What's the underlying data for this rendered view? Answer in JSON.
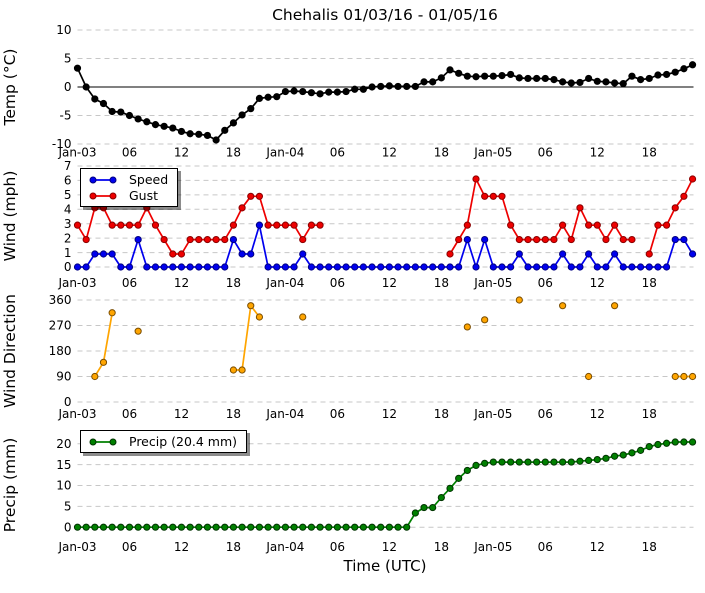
{
  "title": "Chehalis 01/03/16 - 01/05/16",
  "xlabel": "Time (UTC)",
  "x": {
    "tick_hours": [
      0,
      6,
      12,
      18,
      24,
      30,
      36,
      42,
      48,
      54,
      60,
      66
    ],
    "tick_labels": [
      "Jan-03",
      "06",
      "12",
      "18",
      "Jan-04",
      "06",
      "12",
      "18",
      "Jan-05",
      "06",
      "12",
      "18"
    ],
    "hours_span": [
      0,
      71
    ]
  },
  "colors": {
    "temp": "#000000",
    "speed": "#0000ee",
    "speed_edge": "#000080",
    "gust": "#ee0000",
    "gust_edge": "#8b0000",
    "direction": "#ffa500",
    "direction_edge": "#7a4d00",
    "precip": "#008000",
    "precip_edge": "#013301",
    "grid": "#c7c7c7"
  },
  "chart_data": [
    {
      "type": "line",
      "ylabel": "Temp (°C)",
      "ylim": [
        -10,
        10
      ],
      "yticks": [
        10,
        5,
        0,
        -5,
        -10
      ],
      "zero_line": true,
      "grid": "dashed-horizontal",
      "series": [
        {
          "name": "Temp",
          "color": "#000000",
          "marker_edge": "#000000",
          "values": [
            3.3,
            0.0,
            -2.1,
            -2.9,
            -4.3,
            -4.4,
            -5.0,
            -5.6,
            -6.1,
            -6.6,
            -6.9,
            -7.2,
            -7.8,
            -8.2,
            -8.3,
            -8.5,
            -9.3,
            -7.6,
            -6.3,
            -4.9,
            -3.8,
            -2.0,
            -1.8,
            -1.7,
            -0.8,
            -0.7,
            -0.8,
            -1.0,
            -1.2,
            -0.9,
            -0.9,
            -0.8,
            -0.4,
            -0.4,
            0.0,
            0.1,
            0.2,
            0.1,
            0.1,
            0.1,
            0.9,
            0.9,
            1.6,
            3.0,
            2.4,
            1.9,
            1.8,
            1.9,
            1.9,
            2.0,
            2.2,
            1.6,
            1.5,
            1.5,
            1.5,
            1.3,
            0.9,
            0.7,
            0.8,
            1.5,
            1.0,
            0.9,
            0.7,
            0.6,
            1.9,
            1.3,
            1.5,
            2.1,
            2.2,
            2.6,
            3.2,
            3.9
          ]
        }
      ]
    },
    {
      "type": "line",
      "ylabel": "Wind (mph)",
      "ylim": [
        0,
        7
      ],
      "yticks": [
        7,
        6,
        5,
        4,
        3,
        2,
        1,
        0
      ],
      "grid": "dashed-horizontal",
      "legend": {
        "position": "upper-left",
        "items": [
          "Speed",
          "Gust"
        ]
      },
      "series": [
        {
          "name": "Speed",
          "color": "#0000ee",
          "marker_edge": "#000080",
          "values": [
            0,
            0,
            0.9,
            0.9,
            0.9,
            0,
            0,
            1.9,
            0,
            0,
            0,
            0,
            0,
            0,
            0,
            0,
            0,
            0,
            1.9,
            0.9,
            0.9,
            2.9,
            0,
            0,
            0,
            0,
            0.9,
            0,
            0,
            0,
            0,
            0,
            0,
            0,
            0,
            0,
            0,
            0,
            0,
            0,
            0,
            0,
            0,
            0,
            0,
            1.9,
            0,
            1.9,
            0,
            0,
            0,
            0.9,
            0,
            0,
            0,
            0,
            0.9,
            0,
            0,
            0.9,
            0,
            0,
            0.9,
            0,
            0,
            0,
            0,
            0,
            0,
            1.9,
            1.9,
            0.9
          ]
        },
        {
          "name": "Gust",
          "color": "#ee0000",
          "marker_edge": "#8b0000",
          "values": [
            2.9,
            1.9,
            4.1,
            4.1,
            2.9,
            2.9,
            2.9,
            2.9,
            4.1,
            2.9,
            1.9,
            0.9,
            0.9,
            1.9,
            1.9,
            1.9,
            1.9,
            1.9,
            2.9,
            4.1,
            4.9,
            4.9,
            2.9,
            2.9,
            2.9,
            2.9,
            1.9,
            2.9,
            2.9,
            null,
            null,
            null,
            null,
            null,
            null,
            null,
            null,
            null,
            null,
            null,
            null,
            null,
            null,
            0.9,
            1.9,
            2.9,
            6.1,
            4.9,
            4.9,
            4.9,
            2.9,
            1.9,
            1.9,
            1.9,
            1.9,
            1.9,
            2.9,
            1.9,
            4.1,
            2.9,
            2.9,
            1.9,
            2.9,
            1.9,
            1.9,
            null,
            0.9,
            2.9,
            2.9,
            4.1,
            4.9,
            6.1
          ]
        }
      ]
    },
    {
      "type": "scatter",
      "ylabel": "Wind Direction",
      "ylim": [
        0,
        360
      ],
      "yticks": [
        360,
        270,
        180,
        90,
        0
      ],
      "grid": "dashed-horizontal",
      "series": [
        {
          "name": "Direction",
          "color": "#ffa500",
          "marker_edge": "#7a4d00",
          "connect_adjacent_only": true,
          "values": [
            null,
            null,
            90,
            140,
            315,
            null,
            null,
            250,
            null,
            null,
            null,
            null,
            null,
            null,
            null,
            null,
            null,
            null,
            113,
            113,
            340,
            300,
            null,
            null,
            null,
            null,
            300,
            null,
            null,
            null,
            null,
            null,
            null,
            null,
            null,
            null,
            null,
            null,
            null,
            null,
            null,
            null,
            null,
            null,
            null,
            265,
            null,
            290,
            null,
            null,
            null,
            360,
            null,
            null,
            null,
            null,
            340,
            null,
            null,
            90,
            null,
            null,
            340,
            null,
            null,
            null,
            null,
            null,
            null,
            90,
            90,
            90
          ]
        }
      ]
    },
    {
      "type": "line",
      "ylabel": "Precip (mm)",
      "ylim": [
        0,
        20
      ],
      "yticks": [
        20,
        15,
        10,
        5,
        0
      ],
      "grid": "dashed-horizontal",
      "legend": {
        "position": "upper-left",
        "items": [
          "Precip (20.4 mm)"
        ]
      },
      "series": [
        {
          "name": "Precip (20.4 mm)",
          "color": "#008000",
          "marker_edge": "#013301",
          "values": [
            0,
            0,
            0,
            0,
            0,
            0,
            0,
            0,
            0,
            0,
            0,
            0,
            0,
            0,
            0,
            0,
            0,
            0,
            0,
            0,
            0,
            0,
            0,
            0,
            0,
            0,
            0,
            0,
            0,
            0,
            0,
            0,
            0,
            0,
            0,
            0,
            0,
            0,
            0,
            3.4,
            4.7,
            4.7,
            7.1,
            9.3,
            11.7,
            13.6,
            14.8,
            15.3,
            15.6,
            15.6,
            15.6,
            15.6,
            15.6,
            15.6,
            15.6,
            15.6,
            15.6,
            15.6,
            15.8,
            16.0,
            16.2,
            16.5,
            17.0,
            17.3,
            17.8,
            18.4,
            19.3,
            19.8,
            20.1,
            20.4,
            20.4,
            20.4
          ]
        }
      ]
    }
  ]
}
